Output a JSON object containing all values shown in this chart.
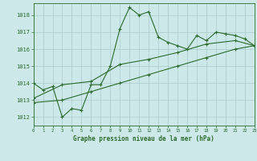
{
  "title": "Graphe pression niveau de la mer (hPa)",
  "bg_color": "#cce8e8",
  "grid_color": "#aacccc",
  "line_color": "#2d6a2d",
  "x_min": 0,
  "x_max": 23,
  "y_min": 1011.5,
  "y_max": 1018.7,
  "yticks": [
    1012,
    1013,
    1014,
    1015,
    1016,
    1017,
    1018
  ],
  "xticks": [
    0,
    1,
    2,
    3,
    4,
    5,
    6,
    7,
    8,
    9,
    10,
    11,
    12,
    13,
    14,
    15,
    16,
    17,
    18,
    19,
    20,
    21,
    22,
    23
  ],
  "series": [
    {
      "x": [
        0,
        1,
        2,
        3,
        4,
        5,
        6,
        7,
        8,
        9,
        10,
        11,
        12,
        13,
        14,
        15,
        16,
        17,
        18,
        19,
        20,
        21,
        22,
        23
      ],
      "y": [
        1014.0,
        1013.6,
        1013.8,
        1012.0,
        1012.5,
        1012.4,
        1013.9,
        1013.9,
        1015.0,
        1017.2,
        1018.45,
        1018.0,
        1018.2,
        1016.7,
        1016.4,
        1016.2,
        1016.0,
        1016.8,
        1016.5,
        1017.0,
        1016.9,
        1016.8,
        1016.6,
        1016.2
      ]
    },
    {
      "x": [
        0,
        3,
        6,
        9,
        12,
        15,
        18,
        21,
        23
      ],
      "y": [
        1013.1,
        1013.9,
        1014.1,
        1015.1,
        1015.4,
        1015.8,
        1016.3,
        1016.5,
        1016.2
      ]
    },
    {
      "x": [
        0,
        3,
        6,
        9,
        12,
        15,
        18,
        21,
        23
      ],
      "y": [
        1012.85,
        1013.0,
        1013.5,
        1014.0,
        1014.5,
        1015.0,
        1015.5,
        1016.0,
        1016.2
      ]
    }
  ]
}
